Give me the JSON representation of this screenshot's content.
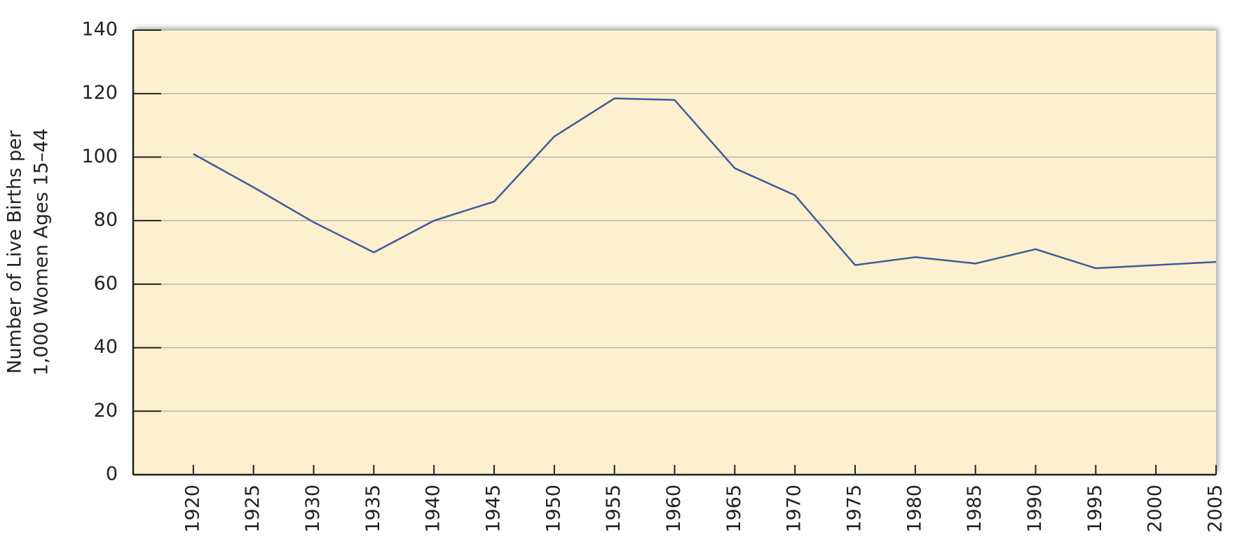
{
  "chart_data": {
    "type": "line",
    "y_label": [
      "Number of Live Births per",
      "1,000 Women Ages 15–44"
    ],
    "x": [
      1920,
      1925,
      1930,
      1935,
      1940,
      1945,
      1950,
      1955,
      1960,
      1965,
      1970,
      1975,
      1980,
      1985,
      1990,
      1995,
      2000,
      2005
    ],
    "series": [
      {
        "color": "#3d5c99",
        "values": [
          101,
          90.5,
          79.5,
          70,
          80,
          86,
          106.5,
          118.5,
          118,
          96.5,
          88,
          66,
          68.5,
          66.5,
          71,
          65,
          66,
          67
        ]
      }
    ],
    "xlim": [
      1915,
      2005
    ],
    "xticks": [
      1920,
      1925,
      1930,
      1935,
      1940,
      1945,
      1950,
      1955,
      1960,
      1965,
      1970,
      1975,
      1980,
      1985,
      1990,
      1995,
      2000,
      2005
    ],
    "ylim": [
      0,
      140
    ],
    "yticks": [
      0,
      20,
      40,
      60,
      80,
      100,
      120,
      140
    ],
    "grid": true
  }
}
